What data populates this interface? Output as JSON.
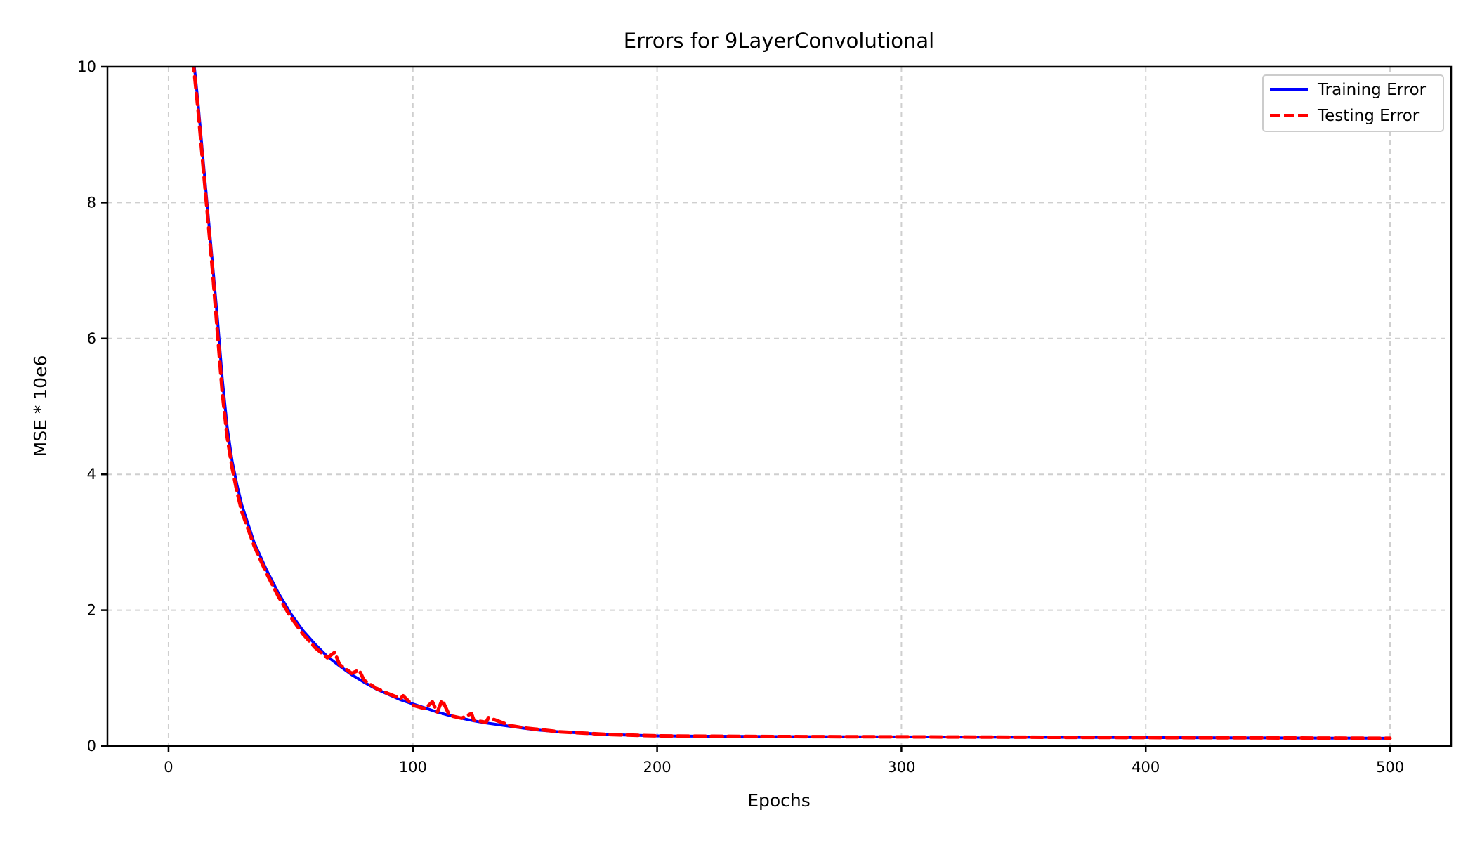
{
  "chart_data": {
    "type": "line",
    "title": "Errors for 9LayerConvolutional",
    "xlabel": "Epochs",
    "ylabel": "MSE * 10e6",
    "xlim": [
      -25,
      525
    ],
    "ylim": [
      0,
      10
    ],
    "xticks": [
      0,
      100,
      200,
      300,
      400,
      500
    ],
    "xtick_labels": [
      "0",
      "100",
      "200",
      "300",
      "400",
      "500"
    ],
    "yticks": [
      0,
      2,
      4,
      6,
      8,
      10
    ],
    "ytick_labels": [
      "0",
      "2",
      "4",
      "6",
      "8",
      "10"
    ],
    "grid": true,
    "legend_position": "top-right",
    "series": [
      {
        "name": "Training Error",
        "color": "#0000ff",
        "line_style": "solid",
        "x": [
          10,
          12,
          14,
          16,
          18,
          20,
          22,
          24,
          26,
          28,
          30,
          35,
          40,
          45,
          50,
          55,
          60,
          65,
          70,
          75,
          80,
          85,
          90,
          95,
          100,
          105,
          110,
          115,
          120,
          125,
          130,
          140,
          150,
          160,
          170,
          180,
          190,
          200,
          220,
          250,
          300,
          350,
          400,
          450,
          500
        ],
        "y": [
          10.2,
          9.5,
          8.7,
          7.9,
          7.1,
          6.3,
          5.4,
          4.7,
          4.2,
          3.85,
          3.55,
          3.0,
          2.6,
          2.25,
          1.95,
          1.7,
          1.5,
          1.32,
          1.18,
          1.05,
          0.94,
          0.84,
          0.76,
          0.68,
          0.62,
          0.56,
          0.5,
          0.45,
          0.41,
          0.37,
          0.34,
          0.29,
          0.24,
          0.21,
          0.19,
          0.17,
          0.16,
          0.15,
          0.145,
          0.14,
          0.135,
          0.13,
          0.125,
          0.12,
          0.115
        ]
      },
      {
        "name": "Testing Error",
        "color": "#ff0000",
        "line_style": "dashed",
        "x": [
          10,
          12,
          14,
          16,
          18,
          20,
          22,
          24,
          26,
          28,
          30,
          35,
          40,
          45,
          50,
          55,
          60,
          65,
          68,
          70,
          75,
          78,
          80,
          85,
          90,
          95,
          96,
          100,
          105,
          108,
          110,
          112,
          115,
          120,
          124,
          125,
          130,
          131,
          140,
          145,
          150,
          160,
          170,
          180,
          190,
          200,
          220,
          250,
          300,
          350,
          400,
          450,
          500
        ],
        "y": [
          10.1,
          9.4,
          8.6,
          7.8,
          7.0,
          6.1,
          5.2,
          4.55,
          4.1,
          3.75,
          3.45,
          2.95,
          2.55,
          2.2,
          1.9,
          1.65,
          1.45,
          1.3,
          1.38,
          1.2,
          1.07,
          1.12,
          0.97,
          0.85,
          0.77,
          0.7,
          0.74,
          0.6,
          0.55,
          0.65,
          0.5,
          0.68,
          0.45,
          0.41,
          0.48,
          0.38,
          0.35,
          0.42,
          0.3,
          0.27,
          0.25,
          0.21,
          0.19,
          0.17,
          0.16,
          0.15,
          0.145,
          0.14,
          0.135,
          0.13,
          0.125,
          0.12,
          0.115
        ]
      }
    ]
  }
}
